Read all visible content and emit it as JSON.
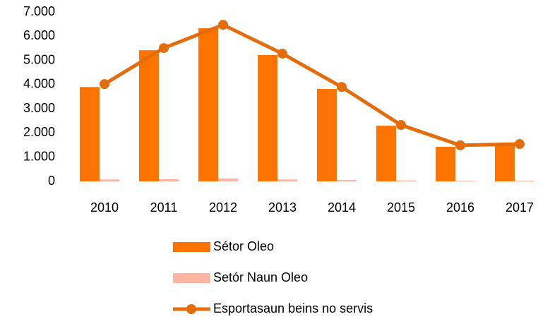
{
  "chart_data": {
    "type": "bar_line",
    "categories": [
      "2010",
      "2011",
      "2012",
      "2013",
      "2014",
      "2015",
      "2016",
      "2017"
    ],
    "series": [
      {
        "name": "Sétor Oleo",
        "type": "bar",
        "color": "#ff7300",
        "values": [
          3900,
          5420,
          6330,
          5220,
          3820,
          2300,
          1430,
          1520
        ]
      },
      {
        "name": "Setór Naun Oleo",
        "type": "bar",
        "color": "#ffb4a2",
        "values": [
          80,
          90,
          120,
          80,
          60,
          40,
          30,
          30
        ]
      },
      {
        "name": "Esportasaun beins no servis",
        "type": "line",
        "color": "#e46c0a",
        "values": [
          4020,
          5510,
          6470,
          5280,
          3900,
          2330,
          1490,
          1545
        ]
      }
    ],
    "ylim": [
      0,
      7000
    ],
    "yticks": [
      0,
      {
        "value": 1000,
        "label": "1.000"
      },
      {
        "value": 2000,
        "label": "2.000"
      },
      {
        "value": 3000,
        "label": "3.000"
      },
      {
        "value": 4000,
        "label": "4.000"
      },
      {
        "value": 5000,
        "label": "5.000"
      },
      {
        "value": 6000,
        "label": "6.000"
      },
      {
        "value": 7000,
        "label": "7.000"
      }
    ],
    "grid": false
  }
}
